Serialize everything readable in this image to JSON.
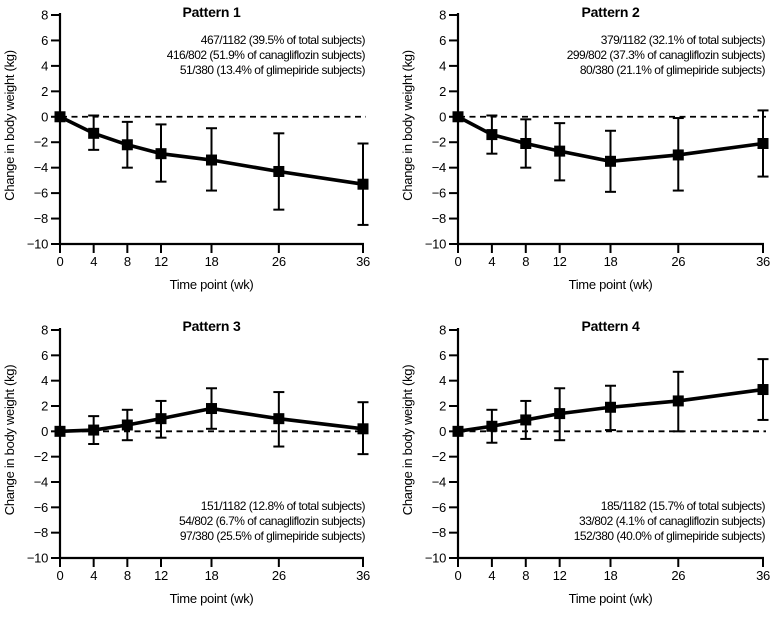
{
  "figure": {
    "background": "#ffffff",
    "ink_color": "#000000"
  },
  "chart_data": [
    {
      "type": "line",
      "title": "Pattern 1",
      "xlabel": "Time point (wk)",
      "ylabel": "Change in body weight (kg)",
      "x": [
        0,
        4,
        8,
        12,
        18,
        26,
        36
      ],
      "values": [
        0,
        -1.3,
        -2.2,
        -2.9,
        -3.4,
        -4.3,
        -5.3
      ],
      "err_high": [
        0,
        0.1,
        -0.4,
        -0.6,
        -0.9,
        -1.3,
        -2.1
      ],
      "err_low": [
        0,
        -2.6,
        -4.0,
        -5.1,
        -5.8,
        -7.3,
        -8.5
      ],
      "xticks": [
        0,
        4,
        8,
        12,
        18,
        26,
        36
      ],
      "yticks": [
        8,
        6,
        4,
        2,
        0,
        -2,
        -4,
        -6,
        -8,
        -10
      ],
      "xlim": [
        0,
        36
      ],
      "ylim": [
        -10,
        8
      ],
      "zero_line": "dashed",
      "marker": "filled-square",
      "grid": false,
      "annotation_lines": [
        "467/1182 (39.5% of total subjects)",
        "416/802 (51.9% of canagliflozin subjects)",
        "51/380 (13.4% of glimepiride subjects)"
      ],
      "annotation_position": "top-right"
    },
    {
      "type": "line",
      "title": "Pattern 2",
      "xlabel": "Time point (wk)",
      "ylabel": "Change in body weight (kg)",
      "x": [
        0,
        4,
        8,
        12,
        18,
        26,
        36
      ],
      "values": [
        0,
        -1.4,
        -2.1,
        -2.7,
        -3.5,
        -3.0,
        -2.1
      ],
      "err_high": [
        0,
        0.1,
        -0.2,
        -0.5,
        -1.1,
        -0.1,
        0.5
      ],
      "err_low": [
        0,
        -2.9,
        -4.0,
        -5.0,
        -5.9,
        -5.8,
        -4.7
      ],
      "xticks": [
        0,
        4,
        8,
        12,
        18,
        26,
        36
      ],
      "yticks": [
        8,
        6,
        4,
        2,
        0,
        -2,
        -4,
        -6,
        -8,
        -10
      ],
      "xlim": [
        0,
        36
      ],
      "ylim": [
        -10,
        8
      ],
      "zero_line": "dashed",
      "marker": "filled-square",
      "grid": false,
      "annotation_lines": [
        "379/1182 (32.1% of total subjects)",
        "299/802 (37.3% of canagliflozin subjects)",
        "80/380 (21.1% of glimepiride subjects)"
      ],
      "annotation_position": "top-right"
    },
    {
      "type": "line",
      "title": "Pattern 3",
      "xlabel": "Time point (wk)",
      "ylabel": "Change in body weight (kg)",
      "x": [
        0,
        4,
        8,
        12,
        18,
        26,
        36
      ],
      "values": [
        0,
        0.1,
        0.5,
        1.0,
        1.8,
        1.0,
        0.2
      ],
      "err_high": [
        0,
        1.2,
        1.7,
        2.4,
        3.4,
        3.1,
        2.3
      ],
      "err_low": [
        0,
        -1.0,
        -0.7,
        -0.5,
        0.2,
        -1.2,
        -1.8
      ],
      "xticks": [
        0,
        4,
        8,
        12,
        18,
        26,
        36
      ],
      "yticks": [
        8,
        6,
        4,
        2,
        0,
        -2,
        -4,
        -6,
        -8,
        -10
      ],
      "xlim": [
        0,
        36
      ],
      "ylim": [
        -10,
        8
      ],
      "zero_line": "dashed",
      "marker": "filled-square",
      "grid": false,
      "annotation_lines": [
        "151/1182 (12.8% of total subjects)",
        "54/802 (6.7% of canagliflozin subjects)",
        "97/380 (25.5% of glimepiride subjects)"
      ],
      "annotation_position": "bottom-right"
    },
    {
      "type": "line",
      "title": "Pattern 4",
      "xlabel": "Time point (wk)",
      "ylabel": "Change in body weight (kg)",
      "x": [
        0,
        4,
        8,
        12,
        18,
        26,
        36
      ],
      "values": [
        0,
        0.4,
        0.9,
        1.4,
        1.9,
        2.4,
        3.3
      ],
      "err_high": [
        0,
        1.7,
        2.4,
        3.4,
        3.6,
        4.7,
        5.7
      ],
      "err_low": [
        0,
        -0.9,
        -0.6,
        -0.7,
        0.1,
        0.0,
        0.9
      ],
      "xticks": [
        0,
        4,
        8,
        12,
        18,
        26,
        36
      ],
      "yticks": [
        8,
        6,
        4,
        2,
        0,
        -2,
        -4,
        -6,
        -8,
        -10
      ],
      "xlim": [
        0,
        36
      ],
      "ylim": [
        -10,
        8
      ],
      "zero_line": "dashed",
      "marker": "filled-square",
      "grid": false,
      "annotation_lines": [
        "185/1182 (15.7% of total subjects)",
        "33/802 (4.1% of canagliflozin subjects)",
        "152/380 (40.0% of glimepiride subjects)"
      ],
      "annotation_position": "bottom-right"
    }
  ]
}
